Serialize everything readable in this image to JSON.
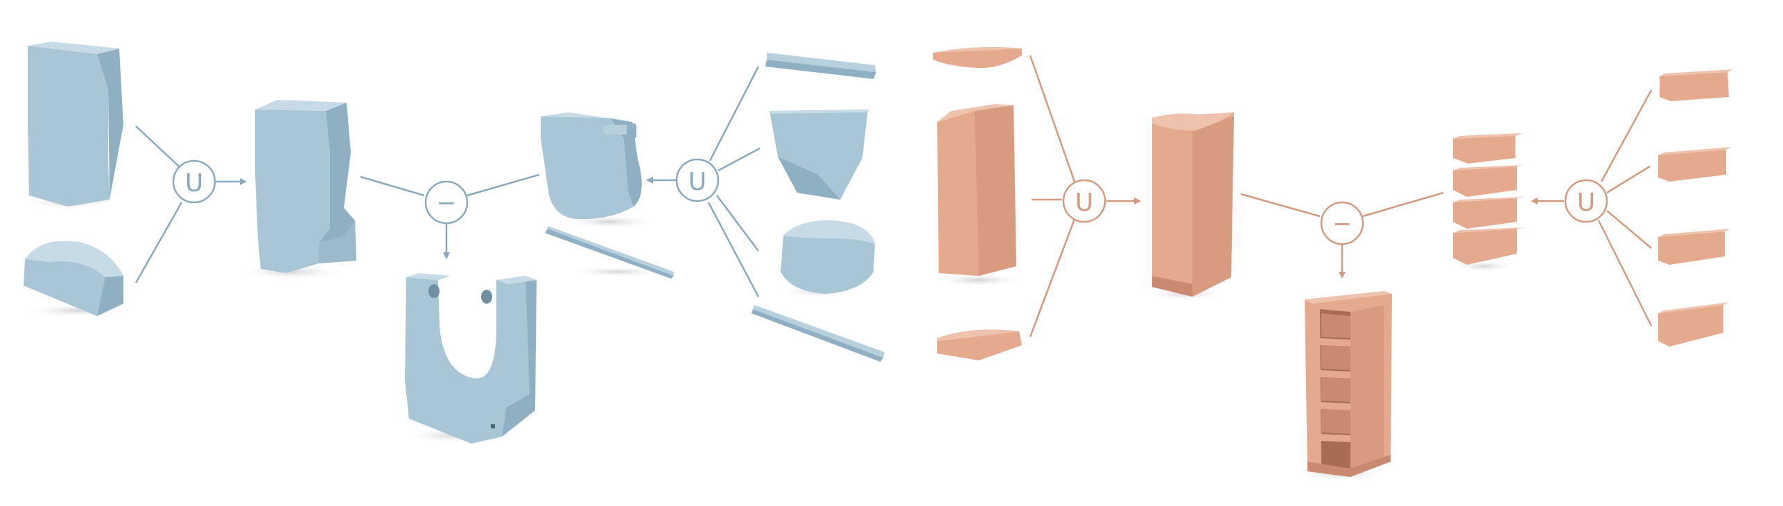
{
  "colors": {
    "blue_front": "#a9c6d7",
    "blue_side": "#8fb0c3",
    "blue_top": "#c6dbe6",
    "blue_dark": "#6f8fa2",
    "blue_line": "#8aa9bc",
    "orange_front": "#e5a98e",
    "orange_side": "#cf9075",
    "orange_top": "#efc2ad",
    "orange_dark": "#a86c53",
    "orange_line": "#d39a80",
    "shadow": "#d9d9d9"
  },
  "operators": {
    "union_symbol": "U",
    "difference_symbol": "−"
  },
  "pipelines": [
    {
      "name": "blue-part",
      "operations": [
        "union",
        "difference",
        "union"
      ]
    },
    {
      "name": "orange-bookshelf",
      "operations": [
        "union",
        "difference",
        "union"
      ]
    }
  ]
}
